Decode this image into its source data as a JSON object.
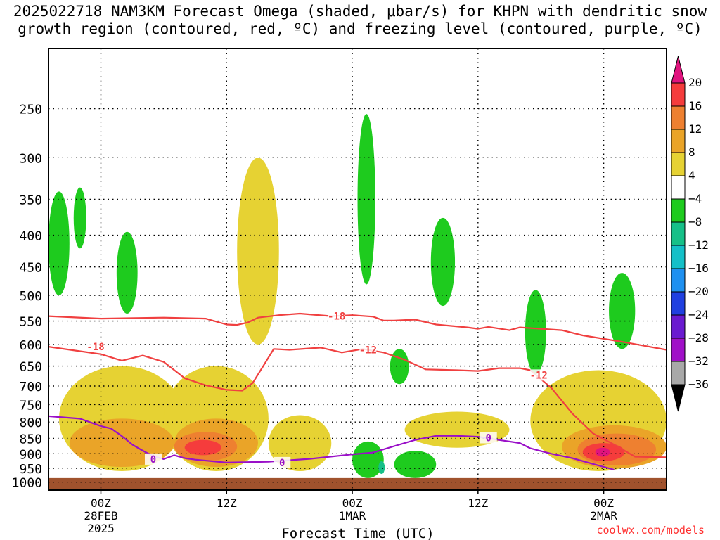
{
  "title": {
    "line1": "2025022718 NAM3KM Forecast Omega (shaded, μbar/s) for KHPN with dendritic snow",
    "line2": "growth region (contoured, red, ºC) and freezing level (contoured, purple, ºC)"
  },
  "credit": "coolwx.com/models",
  "colors": {
    "ground": "#a0522d",
    "dgz_contour": "#f04040",
    "freezing_contour": "#9a10c8",
    "gridline": "#000000"
  },
  "chart_data": {
    "type": "heatmap",
    "title": "2025022718 NAM3KM Forecast Omega (shaded, μbar/s) for KHPN with dendritic snow growth region (contoured, red, ºC) and freezing level (contoured, purple, ºC)",
    "xlabel": "Forecast Time (UTC)",
    "ylabel": "",
    "x_range_hours_after_00z_28feb": [
      -5,
      54
    ],
    "x_ticks": [
      {
        "hour": 0,
        "lines": [
          "00Z",
          "28FEB",
          "2025"
        ]
      },
      {
        "hour": 12,
        "lines": [
          "12Z"
        ]
      },
      {
        "hour": 24,
        "lines": [
          "00Z",
          "1MAR"
        ]
      },
      {
        "hour": 36,
        "lines": [
          "12Z"
        ]
      },
      {
        "hour": 48,
        "lines": [
          "00Z",
          "2MAR"
        ]
      }
    ],
    "y_scale": "log-pressure (inverted)",
    "y_range_hpa": [
      1030,
      200
    ],
    "y_ticks_hpa": [
      250,
      300,
      350,
      400,
      450,
      500,
      550,
      600,
      650,
      700,
      750,
      800,
      850,
      900,
      950,
      1000
    ],
    "grid": true,
    "colorbar": {
      "unit": "μbar/s",
      "labels": [
        "20",
        "16",
        "12",
        "8",
        "4",
        "−4",
        "−8",
        "−12",
        "−16",
        "−20",
        "−24",
        "−28",
        "−32",
        "−36"
      ],
      "bins": [
        {
          "range": ">20",
          "color": "#e0147e"
        },
        {
          "range": "16 to 20",
          "color": "#f53c3c"
        },
        {
          "range": "12 to 16",
          "color": "#ee8030"
        },
        {
          "range": "8 to 12",
          "color": "#eaa428"
        },
        {
          "range": "4 to 8",
          "color": "#e6d233"
        },
        {
          "range": "-4 to 4",
          "color": "#ffffff"
        },
        {
          "range": "-8 to -4",
          "color": "#1ecb1e"
        },
        {
          "range": "-12 to -8",
          "color": "#16c088"
        },
        {
          "range": "-16 to -12",
          "color": "#14c0c8"
        },
        {
          "range": "-20 to -16",
          "color": "#1e90f0"
        },
        {
          "range": "-24 to -20",
          "color": "#2040e0"
        },
        {
          "range": "-28 to -24",
          "color": "#6a1ad0"
        },
        {
          "range": "-32 to -28",
          "color": "#a010c8"
        },
        {
          "range": "-36 to -32",
          "color": "#a8a8a8"
        },
        {
          "range": "<-36",
          "color": "#000000"
        }
      ]
    },
    "contours": [
      {
        "name": "-18",
        "label_at": [
          {
            "hour": -0.5,
            "hpa": 605
          },
          {
            "hour": 22.5,
            "hpa": 540
          }
        ],
        "color": "#f04040",
        "points": [
          [
            -5,
            540
          ],
          [
            0,
            545
          ],
          [
            6,
            543
          ],
          [
            10,
            545
          ],
          [
            12,
            557
          ],
          [
            13,
            558
          ],
          [
            14,
            553
          ],
          [
            15,
            543
          ],
          [
            17,
            538
          ],
          [
            19,
            535
          ],
          [
            22,
            540
          ],
          [
            24,
            538
          ],
          [
            26,
            541
          ],
          [
            27,
            549
          ],
          [
            28,
            549
          ],
          [
            30,
            547
          ],
          [
            32,
            557
          ],
          [
            35,
            563
          ],
          [
            36,
            566
          ],
          [
            37,
            562
          ],
          [
            39,
            569
          ],
          [
            40,
            563
          ],
          [
            44,
            569
          ],
          [
            46,
            580
          ],
          [
            50,
            595
          ],
          [
            54,
            612
          ]
        ]
      },
      {
        "name": "-12",
        "label_at": [
          {
            "hour": 25.5,
            "hpa": 612
          },
          {
            "hour": 41.8,
            "hpa": 672
          }
        ],
        "color": "#f04040",
        "points": [
          [
            -5,
            605
          ],
          [
            0,
            622
          ],
          [
            2,
            637
          ],
          [
            4,
            625
          ],
          [
            6,
            640
          ],
          [
            8,
            680
          ],
          [
            10,
            698
          ],
          [
            12,
            710
          ],
          [
            13.5,
            712
          ],
          [
            14.5,
            692
          ],
          [
            15.5,
            650
          ],
          [
            16.5,
            610
          ],
          [
            18,
            612
          ],
          [
            21,
            607
          ],
          [
            23,
            618
          ],
          [
            25,
            610
          ],
          [
            27,
            618
          ],
          [
            29,
            635
          ],
          [
            31,
            658
          ],
          [
            34,
            660
          ],
          [
            36,
            662
          ],
          [
            38,
            655
          ],
          [
            40,
            655
          ],
          [
            41,
            660
          ],
          [
            43,
            705
          ],
          [
            45,
            775
          ],
          [
            47,
            835
          ],
          [
            49,
            870
          ],
          [
            50,
            890
          ],
          [
            51,
            910
          ],
          [
            54,
            912
          ]
        ]
      },
      {
        "name": "0",
        "label_at": [
          {
            "hour": 5,
            "hpa": 918
          },
          {
            "hour": 17.3,
            "hpa": 930
          },
          {
            "hour": 37,
            "hpa": 848
          }
        ],
        "color": "#9a10c8",
        "points": [
          [
            -5,
            783
          ],
          [
            -2,
            790
          ],
          [
            0,
            812
          ],
          [
            1,
            820
          ],
          [
            2,
            843
          ],
          [
            3,
            870
          ],
          [
            4,
            890
          ],
          [
            5,
            908
          ],
          [
            6,
            918
          ],
          [
            7,
            905
          ],
          [
            8,
            915
          ],
          [
            9,
            920
          ],
          [
            12,
            930
          ],
          [
            16,
            927
          ],
          [
            20,
            917
          ],
          [
            24,
            902
          ],
          [
            26,
            896
          ],
          [
            28,
            875
          ],
          [
            30,
            855
          ],
          [
            32,
            842
          ],
          [
            34,
            842
          ],
          [
            36,
            845
          ],
          [
            38,
            855
          ],
          [
            40,
            865
          ],
          [
            41,
            882
          ],
          [
            43,
            900
          ],
          [
            45,
            915
          ],
          [
            47,
            935
          ],
          [
            49,
            955
          ]
        ]
      }
    ],
    "omega_regions": [
      {
        "value_bin": "4 to 8",
        "hours": [
          -4,
          8
        ],
        "hpa": [
          650,
          960
        ]
      },
      {
        "value_bin": "4 to 8",
        "hours": [
          6,
          16
        ],
        "hpa": [
          650,
          960
        ]
      },
      {
        "value_bin": "4 to 8",
        "hours": [
          16,
          22
        ],
        "hpa": [
          780,
          960
        ]
      },
      {
        "value_bin": "4 to 8",
        "hours": [
          13,
          17
        ],
        "hpa": [
          300,
          600
        ]
      },
      {
        "value_bin": "4 to 8",
        "hours": [
          29,
          39
        ],
        "hpa": [
          770,
          880
        ]
      },
      {
        "value_bin": "4 to 8",
        "hours": [
          41,
          54
        ],
        "hpa": [
          660,
          960
        ]
      },
      {
        "value_bin": "8 to 12",
        "hours": [
          -3,
          7
        ],
        "hpa": [
          790,
          945
        ]
      },
      {
        "value_bin": "8 to 12",
        "hours": [
          7,
          15
        ],
        "hpa": [
          790,
          945
        ]
      },
      {
        "value_bin": "8 to 12",
        "hours": [
          44,
          54
        ],
        "hpa": [
          810,
          950
        ]
      },
      {
        "value_bin": "12 to 16",
        "hours": [
          7,
          13
        ],
        "hpa": [
          830,
          925
        ]
      },
      {
        "value_bin": "12 to 16",
        "hours": [
          45.5,
          53
        ],
        "hpa": [
          835,
          940
        ]
      },
      {
        "value_bin": "16 to 20",
        "hours": [
          8,
          11.5
        ],
        "hpa": [
          855,
          905
        ]
      },
      {
        "value_bin": "16 to 20",
        "hours": [
          46,
          50
        ],
        "hpa": [
          865,
          925
        ]
      },
      {
        "value_bin": ">20",
        "hours": [
          47.2,
          48.6
        ],
        "hpa": [
          880,
          910
        ]
      },
      {
        "value_bin": "-8 to -4",
        "hours": [
          -5,
          -3
        ],
        "hpa": [
          340,
          500
        ]
      },
      {
        "value_bin": "-8 to -4",
        "hours": [
          -2.6,
          -1.4
        ],
        "hpa": [
          335,
          420
        ]
      },
      {
        "value_bin": "-8 to -4",
        "hours": [
          1.5,
          3.5
        ],
        "hpa": [
          395,
          535
        ]
      },
      {
        "value_bin": "-8 to -4",
        "hours": [
          24.5,
          26.2
        ],
        "hpa": [
          255,
          480
        ]
      },
      {
        "value_bin": "-8 to -4",
        "hours": [
          31.5,
          33.8
        ],
        "hpa": [
          375,
          520
        ]
      },
      {
        "value_bin": "-8 to -4",
        "hours": [
          40.5,
          42.5
        ],
        "hpa": [
          490,
          670
        ]
      },
      {
        "value_bin": "-8 to -4",
        "hours": [
          48.5,
          51
        ],
        "hpa": [
          460,
          610
        ]
      },
      {
        "value_bin": "-8 to -4",
        "hours": [
          27.6,
          29.4
        ],
        "hpa": [
          610,
          695
        ]
      },
      {
        "value_bin": "-8 to -4",
        "hours": [
          24,
          27
        ],
        "hpa": [
          860,
          985
        ]
      },
      {
        "value_bin": "-8 to -4",
        "hours": [
          28,
          32
        ],
        "hpa": [
          890,
          985
        ]
      },
      {
        "value_bin": "-12 to -8",
        "hours": [
          26.5,
          27.1
        ],
        "hpa": [
          925,
          970
        ]
      }
    ]
  }
}
